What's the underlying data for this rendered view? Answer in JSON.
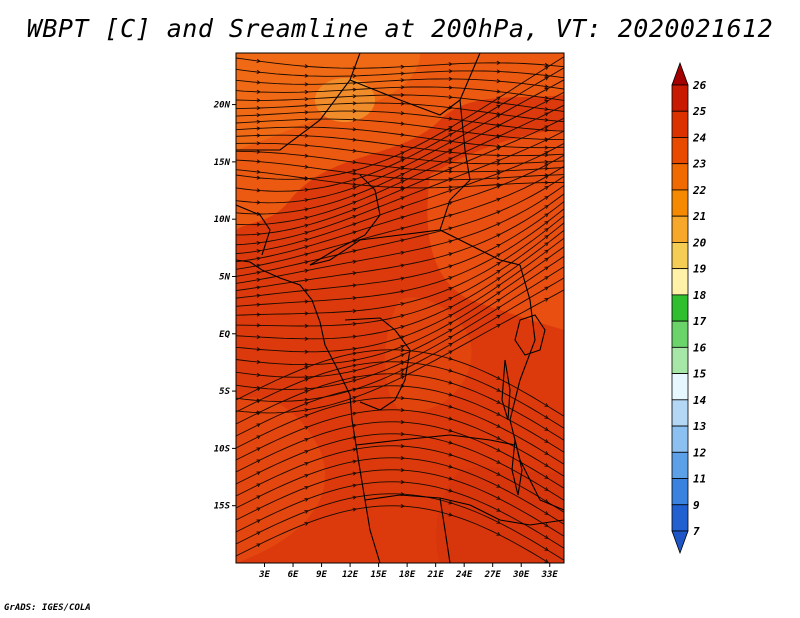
{
  "title": "WBPT [C] and Sreamline at 200hPa, VT: 2020021612",
  "credit": "GrADS: IGES/COLA",
  "map": {
    "lat_labels": [
      "20N",
      "15N",
      "10N",
      "5N",
      "EQ",
      "5S",
      "10S",
      "15S"
    ],
    "lat_values": [
      20,
      15,
      10,
      5,
      0,
      -5,
      -10,
      -15
    ],
    "lon_labels": [
      "3E",
      "6E",
      "9E",
      "12E",
      "15E",
      "18E",
      "21E",
      "24E",
      "27E",
      "30E",
      "33E"
    ],
    "lon_values": [
      3,
      6,
      9,
      12,
      15,
      18,
      21,
      24,
      27,
      30,
      33
    ],
    "lon_range": [
      0,
      34.5
    ],
    "lat_range": [
      -20,
      24.5
    ],
    "field": "Wet-bulb potential temperature",
    "level": "200hPa",
    "valid_time": "2020021612"
  },
  "colorbar": {
    "labels": [
      "26",
      "25",
      "24",
      "23",
      "22",
      "21",
      "20",
      "19",
      "18",
      "17",
      "16",
      "15",
      "14",
      "13",
      "12",
      "11",
      "9",
      "7"
    ],
    "colors": [
      "#a50000",
      "#c81a00",
      "#dc3200",
      "#e84a00",
      "#f06a00",
      "#f58a00",
      "#f7a82a",
      "#f5cd55",
      "#fff2a8",
      "#2fbf2f",
      "#6ad46a",
      "#a6e6a6",
      "#e6f7ff",
      "#b4d7f5",
      "#8cc0f0",
      "#5ca0e8",
      "#3a82e0",
      "#2060d0",
      "#1e56c8"
    ]
  }
}
